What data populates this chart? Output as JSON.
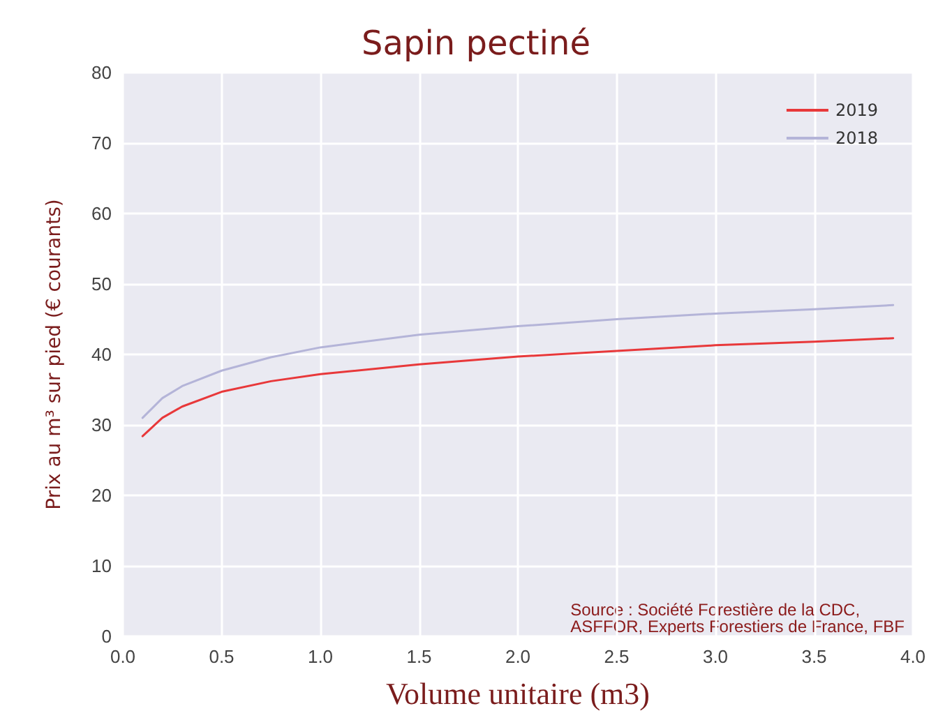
{
  "chart_data": {
    "type": "line",
    "title": "Sapin pectiné",
    "xlabel": "Volume unitaire (m3)",
    "ylabel": "Prix au m³ sur pied (€ courants)",
    "x": [
      0.1,
      0.2,
      0.3,
      0.5,
      0.75,
      1.0,
      1.5,
      2.0,
      2.5,
      3.0,
      3.5,
      3.9
    ],
    "series": [
      {
        "name": "2019",
        "color": "#e8383a",
        "values": [
          28.4,
          31,
          32.6,
          34.7,
          36.2,
          37.2,
          38.6,
          39.7,
          40.5,
          41.3,
          41.8,
          42.3
        ]
      },
      {
        "name": "2018",
        "color": "#b4b4d8",
        "values": [
          31,
          33.8,
          35.5,
          37.7,
          39.6,
          41,
          42.8,
          44,
          45,
          45.8,
          46.4,
          47
        ]
      }
    ],
    "xlim": [
      0,
      4
    ],
    "xticks": [
      {
        "value": 0,
        "label": "0.0"
      },
      0.5,
      {
        "value": 1,
        "label": "1.0"
      },
      1.5,
      {
        "value": 2,
        "label": "2.0"
      },
      2.5,
      {
        "value": 3,
        "label": "3.0"
      },
      3.5,
      {
        "value": 4,
        "label": "4.0"
      }
    ],
    "ylim": [
      0,
      80
    ],
    "yticks": [
      0,
      10,
      20,
      30,
      40,
      50,
      60,
      70,
      80
    ],
    "grid": true,
    "legend": "top right",
    "marker": "none",
    "line_style": "solid",
    "annotations": [
      "Source : Société Forestière de la CDC,\nASFFOR, Experts Forestiers de France, FBF"
    ]
  }
}
